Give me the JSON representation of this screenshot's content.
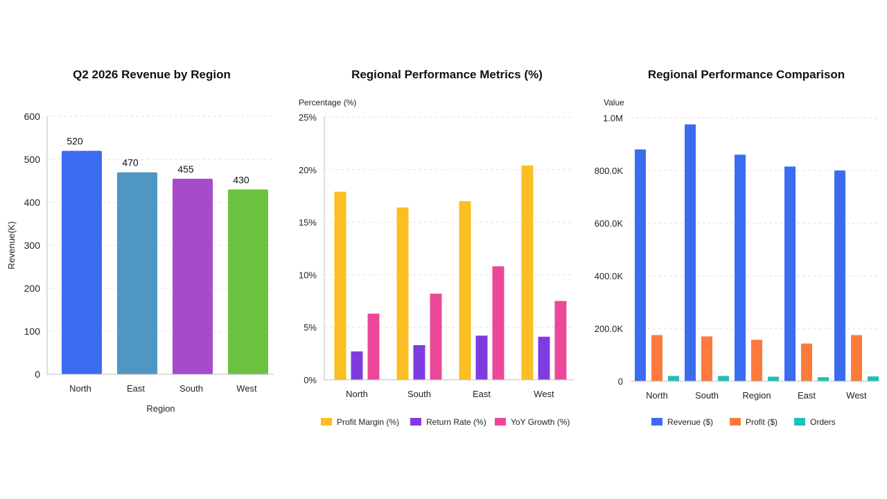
{
  "colors": {
    "north_blue": "#3B6CF0",
    "east_teal": "#4F96C2",
    "south_purple": "#A64BC9",
    "west_green": "#6CC23E",
    "profit_margin": "#FBBF24",
    "return_rate": "#7E3CE0",
    "yoy_growth": "#EC4899",
    "revenue": "#3B6CF0",
    "profit": "#FB7A3C",
    "orders": "#1FC1B4"
  },
  "chart_data": [
    {
      "type": "bar",
      "title": "Q2 2026 Revenue by Region",
      "xlabel": "Region",
      "ylabel": "Revenue(K)",
      "categories": [
        "North",
        "East",
        "South",
        "West"
      ],
      "values": [
        520,
        470,
        455,
        430
      ],
      "data_labels": [
        "520",
        "470",
        "455",
        "430"
      ],
      "bar_colors": [
        "#3B6CF0",
        "#4F96C2",
        "#A64BC9",
        "#6CC23E"
      ],
      "ylim": [
        0,
        600
      ],
      "yticks": [
        0,
        100,
        200,
        300,
        400,
        500,
        600
      ],
      "ytick_labels": [
        "0",
        "100",
        "200",
        "300",
        "400",
        "500",
        "600"
      ],
      "grid": true,
      "legend": "none"
    },
    {
      "type": "bar",
      "title": "Regional Performance Metrics (%)",
      "xlabel": "",
      "ylabel": "Percentage (%)",
      "categories": [
        "North",
        "South",
        "East",
        "West"
      ],
      "series": [
        {
          "name": "Profit Margin (%)",
          "color": "#FBBF24",
          "values": [
            17.9,
            16.4,
            17.0,
            20.4
          ]
        },
        {
          "name": "Return Rate (%)",
          "color": "#7E3CE0",
          "values": [
            2.7,
            3.3,
            4.2,
            4.1
          ]
        },
        {
          "name": "YoY Growth (%)",
          "color": "#EC4899",
          "values": [
            6.3,
            8.2,
            10.8,
            7.5
          ]
        }
      ],
      "ylim": [
        0,
        25
      ],
      "yticks": [
        0,
        5,
        10,
        15,
        20,
        25
      ],
      "ytick_labels": [
        "0%",
        "5%",
        "10%",
        "15%",
        "20%",
        "25%"
      ],
      "grid": true,
      "legend": "bottom"
    },
    {
      "type": "bar",
      "title": "Regional Performance Comparison",
      "xlabel": "",
      "ylabel": "Value",
      "categories": [
        "North",
        "South",
        "Region",
        "East",
        "West"
      ],
      "series": [
        {
          "name": "Revenue ($)",
          "color": "#3B6CF0",
          "values": [
            880000,
            975000,
            860000,
            815000,
            800000
          ]
        },
        {
          "name": "Profit ($)",
          "color": "#FB7A3C",
          "values": [
            175000,
            170000,
            157000,
            143000,
            175000
          ]
        },
        {
          "name": "Orders",
          "color": "#1FC1B4",
          "values": [
            20000,
            20000,
            17000,
            15000,
            18000
          ]
        }
      ],
      "ylim": [
        0,
        1000000
      ],
      "yticks": [
        0,
        200000,
        400000,
        600000,
        800000,
        1000000
      ],
      "ytick_labels": [
        "0",
        "200.0K",
        "400.0K",
        "600.0K",
        "800.0K",
        "1.0M"
      ],
      "grid": true,
      "legend": "bottom"
    }
  ]
}
